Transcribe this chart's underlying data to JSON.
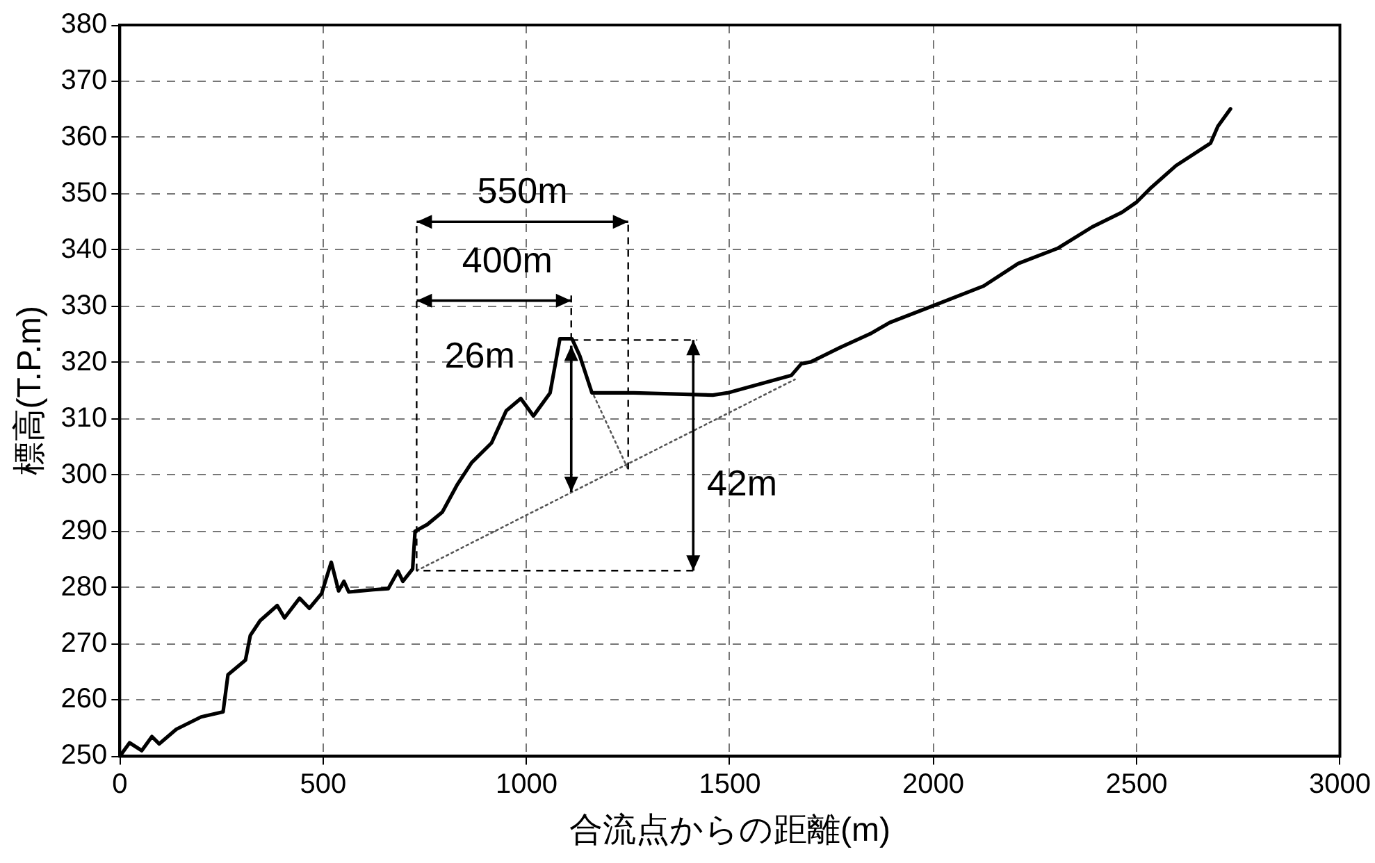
{
  "chart_data": {
    "type": "line",
    "xlabel": "合流点からの距離(m)",
    "ylabel": "標高(T.P.m)",
    "xlim": [
      0,
      3000
    ],
    "xticks": [
      0,
      500,
      1000,
      1500,
      2000,
      2500,
      3000
    ],
    "ylim": [
      250,
      380
    ],
    "yticks": [
      250,
      260,
      270,
      280,
      290,
      300,
      310,
      320,
      330,
      340,
      350,
      360,
      370,
      380
    ],
    "grid": true,
    "legend": false,
    "series": [
      {
        "color": "#000000",
        "x": [
          0,
          24,
          54,
          79,
          97,
          139,
          200,
          254,
          266,
          309,
          321,
          345,
          387,
          405,
          442,
          466,
          496,
          520,
          538,
          551,
          563,
          623,
          660,
          684,
          696,
          720,
          726,
          756,
          793,
          829,
          865,
          914,
          950,
          986,
          1017,
          1058,
          1082,
          1112,
          1131,
          1161,
          1264,
          1458,
          1494,
          1651,
          1676,
          1699,
          1772,
          1845,
          1893,
          2000,
          2124,
          2209,
          2306,
          2391,
          2464,
          2500,
          2536,
          2597,
          2682,
          2700,
          2731
        ],
        "values": [
          250,
          252.4,
          251,
          253.5,
          252.2,
          254.8,
          257,
          257.9,
          264.5,
          267.1,
          271.5,
          274.1,
          276.8,
          274.6,
          278.1,
          276.3,
          278.9,
          284.5,
          279.4,
          281.1,
          279.2,
          279.6,
          279.8,
          282.9,
          281.1,
          283.3,
          290,
          291.2,
          293.4,
          298.2,
          302.2,
          305.7,
          311.4,
          313.6,
          310.5,
          314.6,
          324.2,
          324.2,
          321.2,
          314.6,
          314.6,
          314.2,
          314.6,
          317.7,
          319.8,
          320.1,
          322.7,
          325.1,
          327.1,
          330.1,
          333.6,
          337.6,
          340.3,
          344.1,
          346.7,
          348.5,
          351.1,
          355,
          359,
          362,
          365.1
        ]
      },
      {
        "color": "#555555",
        "line_style": "dotted",
        "x": [
          730,
          1660
        ],
        "values": [
          283,
          317
        ]
      },
      {
        "color": "#555555",
        "line_style": "dotted",
        "x": [
          1160,
          1250
        ],
        "values": [
          315,
          301
        ]
      }
    ],
    "annotations": [
      "550m",
      {
        "text": "400m",
        "x": 1110,
        "y": 324
      },
      "26m",
      "42m"
    ]
  }
}
